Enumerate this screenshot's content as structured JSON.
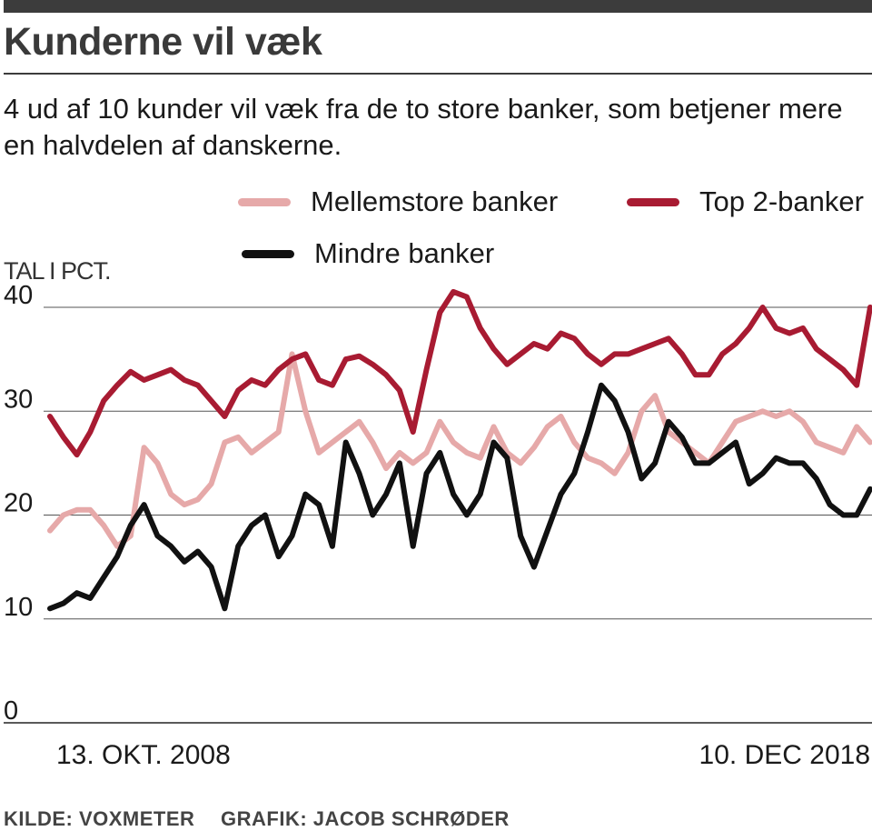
{
  "title": "Kunderne vil væk",
  "subtitle": "4 ud af 10 kunder vil væk fra de to store banker, som betjener mere en halvdelen af danskerne.",
  "unit_label": "TAL I PCT.",
  "source": "KILDE: VOXMETER",
  "credit": "GRAFIK: JACOB SCHRØDER",
  "chart_data": {
    "type": "line",
    "title": "Kunderne vil væk",
    "xlabel": "",
    "ylabel": "TAL I PCT.",
    "x_start_label": "13. OKT. 2008",
    "x_end_label": "10. DEC 2018",
    "x_range": [
      "2008-10-13",
      "2018-12-10"
    ],
    "ylim": [
      0,
      40
    ],
    "yticks": [
      0,
      10,
      20,
      30,
      40
    ],
    "grid": true,
    "legend": "top",
    "colors": {
      "Mellemstore banker": "#e6a9a9",
      "Top 2-banker": "#a81b32",
      "Mindre banker": "#111111"
    },
    "x": [
      "2008-10",
      "2008-12",
      "2009-01",
      "2009-03",
      "2009-05",
      "2009-07",
      "2009-09",
      "2009-11",
      "2010-01",
      "2010-03",
      "2010-05",
      "2010-07",
      "2010-09",
      "2010-11",
      "2011-01",
      "2011-03",
      "2011-05",
      "2011-07",
      "2011-09",
      "2011-11",
      "2012-01",
      "2012-03",
      "2012-05",
      "2012-07",
      "2012-09",
      "2012-11",
      "2013-01",
      "2013-03",
      "2013-05",
      "2013-07",
      "2013-09",
      "2013-11",
      "2014-01",
      "2014-03",
      "2014-05",
      "2014-07",
      "2014-09",
      "2014-11",
      "2015-01",
      "2015-03",
      "2015-05",
      "2015-07",
      "2015-09",
      "2015-11",
      "2016-01",
      "2016-03",
      "2016-05",
      "2016-07",
      "2016-09",
      "2016-11",
      "2017-01",
      "2017-03",
      "2017-05",
      "2017-07",
      "2017-09",
      "2017-11",
      "2018-01",
      "2018-03",
      "2018-05",
      "2018-07",
      "2018-09",
      "2018-12"
    ],
    "series": [
      {
        "name": "Top 2-banker",
        "values": [
          29.5,
          27.5,
          25.8,
          28,
          31,
          32.5,
          33.8,
          33,
          33.5,
          34,
          33,
          32.5,
          31,
          29.5,
          32,
          33,
          32.5,
          34,
          35,
          35.5,
          33,
          32.5,
          35,
          35.3,
          34.5,
          33.5,
          32,
          28,
          34,
          39.5,
          41.5,
          41,
          38,
          36,
          34.5,
          35.5,
          36.5,
          36,
          37.5,
          37,
          35.5,
          34.5,
          35.5,
          35.5,
          36,
          36.5,
          37,
          35.5,
          33.5,
          33.5,
          35.5,
          36.5,
          38,
          40,
          38,
          37.5,
          38,
          36,
          35,
          34,
          32.5,
          40
        ]
      },
      {
        "name": "Mellemstore banker",
        "values": [
          18.5,
          20,
          20.5,
          20.5,
          19,
          17,
          18,
          26.5,
          25,
          22,
          21,
          21.5,
          23,
          27,
          27.5,
          26,
          27,
          28,
          35.5,
          30,
          26,
          27,
          28,
          29,
          27,
          24.5,
          26,
          25,
          26,
          29,
          27,
          26,
          25.5,
          28.5,
          26,
          25,
          26.5,
          28.5,
          29.5,
          27,
          25.5,
          25,
          24,
          26,
          30,
          31.5,
          28,
          27,
          26,
          25,
          27,
          29,
          29.5,
          30,
          29.5,
          30,
          29,
          27,
          26.5,
          26,
          28.5,
          27
        ]
      },
      {
        "name": "Mindre banker",
        "values": [
          11,
          11.5,
          12.5,
          12,
          14,
          16,
          19,
          21,
          18,
          17,
          15.5,
          16.5,
          15,
          11,
          17,
          19,
          20,
          16,
          18,
          22,
          21,
          17,
          27,
          24,
          20,
          22,
          25,
          17,
          24,
          26,
          22,
          20,
          22,
          27,
          25.5,
          18,
          15,
          18.5,
          22,
          24,
          28,
          32.5,
          31,
          28,
          23.5,
          25,
          29,
          27.5,
          25,
          25,
          26,
          27,
          23,
          24,
          25.5,
          25,
          25,
          23.5,
          21,
          20,
          20,
          22.5
        ]
      }
    ]
  }
}
